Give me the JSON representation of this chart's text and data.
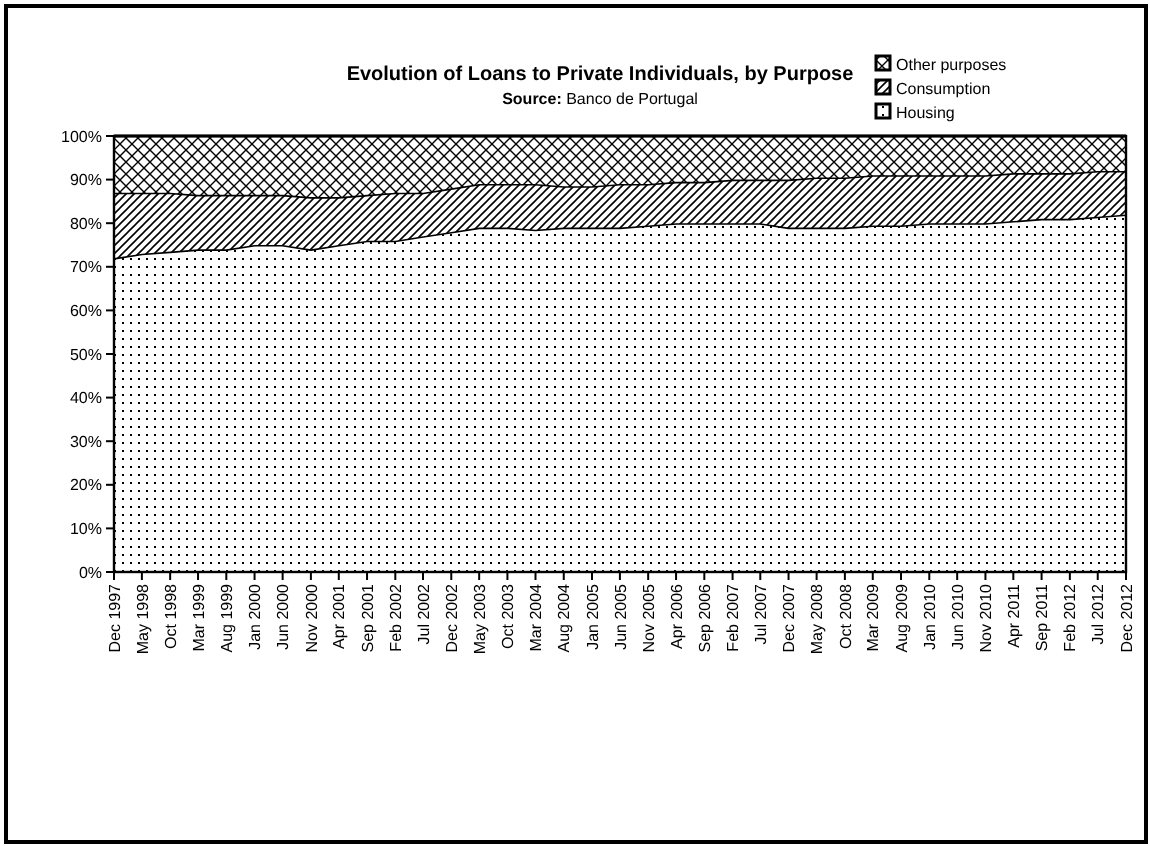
{
  "chart_data": {
    "type": "area",
    "stacked": true,
    "title": "Evolution of Loans to Private Individuals, by Purpose",
    "subtitle": "Source: Banco de Portugal",
    "x": [
      "1997-12",
      "1998-05",
      "1998-10",
      "1999-03",
      "1999-08",
      "2000-01",
      "2000-06",
      "2000-11",
      "2001-04",
      "2001-09",
      "2002-02",
      "2002-07",
      "2002-12",
      "2003-05",
      "2003-10",
      "2004-03",
      "2004-08",
      "2005-01",
      "2005-06",
      "2005-11",
      "2006-04",
      "2006-09",
      "2007-02",
      "2007-07",
      "2007-12",
      "2008-05",
      "2008-10",
      "2009-03",
      "2009-08",
      "2010-01",
      "2010-06",
      "2010-11",
      "2011-04",
      "2011-09",
      "2012-02",
      "2012-07",
      "2012-12"
    ],
    "series": [
      {
        "name": "Housing",
        "color": "#000000",
        "values": [
          72,
          73,
          73.5,
          74,
          74,
          75,
          75,
          74,
          75,
          76,
          76,
          77,
          78,
          79,
          79,
          78.5,
          79,
          79,
          79,
          79.5,
          80,
          80,
          80,
          80,
          79,
          79,
          79,
          79.5,
          79.5,
          80,
          80,
          80,
          80.5,
          81,
          81,
          81.5,
          82
        ]
      },
      {
        "name": "Consumption",
        "color": "#000000",
        "values": [
          15,
          14,
          13.5,
          12.5,
          12.5,
          11.5,
          11.5,
          12,
          11,
          10.5,
          11,
          10,
          10,
          10,
          10,
          10.5,
          9.5,
          9.5,
          10,
          9.5,
          9.5,
          9.5,
          10,
          10,
          11,
          11.5,
          11.5,
          11.5,
          11.5,
          11,
          11,
          11,
          11,
          10.5,
          10.5,
          10.5,
          10
        ]
      },
      {
        "name": "Other purposes",
        "color": "#000000",
        "values": [
          13,
          13,
          13,
          13.5,
          13.5,
          13.5,
          13.5,
          14,
          14,
          13.5,
          13,
          13,
          12,
          11,
          11,
          11,
          11.5,
          11.5,
          11,
          11,
          10.5,
          10.5,
          10,
          10,
          10,
          9.5,
          9.5,
          9,
          9,
          9,
          9,
          9,
          8.5,
          8.5,
          8.5,
          8,
          8
        ]
      }
    ],
    "ylim": [
      0,
      100
    ],
    "yticks": [
      {
        "value": 0,
        "label": "0%"
      },
      {
        "value": 10,
        "label": "10%"
      },
      {
        "value": 20,
        "label": "20%"
      },
      {
        "value": 30,
        "label": "30%"
      },
      {
        "value": 40,
        "label": "40%"
      },
      {
        "value": 50,
        "label": "50%"
      },
      {
        "value": 60,
        "label": "60%"
      },
      {
        "value": 70,
        "label": "70%"
      },
      {
        "value": 80,
        "label": "80%"
      },
      {
        "value": 90,
        "label": "90%"
      },
      {
        "value": 100,
        "label": "100%"
      }
    ],
    "xlim": [
      "1997-12",
      "2012-12"
    ],
    "xticks": [
      {
        "value": "1997-12",
        "label": "Dec 1997"
      },
      {
        "value": "1998-05",
        "label": "May 1998"
      },
      {
        "value": "1998-10",
        "label": "Oct 1998"
      },
      {
        "value": "1999-03",
        "label": "Mar 1999"
      },
      {
        "value": "1999-08",
        "label": "Aug 1999"
      },
      {
        "value": "2000-01",
        "label": "Jan 2000"
      },
      {
        "value": "2000-06",
        "label": "Jun 2000"
      },
      {
        "value": "2000-11",
        "label": "Nov 2000"
      },
      {
        "value": "2001-04",
        "label": "Apr 2001"
      },
      {
        "value": "2001-09",
        "label": "Sep 2001"
      },
      {
        "value": "2002-02",
        "label": "Feb 2002"
      },
      {
        "value": "2002-07",
        "label": "Jul 2002"
      },
      {
        "value": "2002-12",
        "label": "Dec 2002"
      },
      {
        "value": "2003-05",
        "label": "May 2003"
      },
      {
        "value": "2003-10",
        "label": "Oct 2003"
      },
      {
        "value": "2004-03",
        "label": "Mar 2004"
      },
      {
        "value": "2004-08",
        "label": "Aug 2004"
      },
      {
        "value": "2005-01",
        "label": "Jan 2005"
      },
      {
        "value": "2005-06",
        "label": "Jun 2005"
      },
      {
        "value": "2005-11",
        "label": "Nov 2005"
      },
      {
        "value": "2006-04",
        "label": "Apr 2006"
      },
      {
        "value": "2006-09",
        "label": "Sep 2006"
      },
      {
        "value": "2007-02",
        "label": "Feb 2007"
      },
      {
        "value": "2007-07",
        "label": "Jul 2007"
      },
      {
        "value": "2007-12",
        "label": "Dec 2007"
      },
      {
        "value": "2008-05",
        "label": "May 2008"
      },
      {
        "value": "2008-10",
        "label": "Oct 2008"
      },
      {
        "value": "2009-03",
        "label": "Mar 2009"
      },
      {
        "value": "2009-08",
        "label": "Aug 2009"
      },
      {
        "value": "2010-01",
        "label": "Jan 2010"
      },
      {
        "value": "2010-06",
        "label": "Jun 2010"
      },
      {
        "value": "2010-11",
        "label": "Nov 2010"
      },
      {
        "value": "2011-04",
        "label": "Apr 2011"
      },
      {
        "value": "2011-09",
        "label": "Sep 2011"
      },
      {
        "value": "2012-02",
        "label": "Feb 2012"
      },
      {
        "value": "2012-07",
        "label": "Jul 2012"
      },
      {
        "value": "2012-12",
        "label": "Dec 2012"
      }
    ],
    "legend": "top right"
  }
}
